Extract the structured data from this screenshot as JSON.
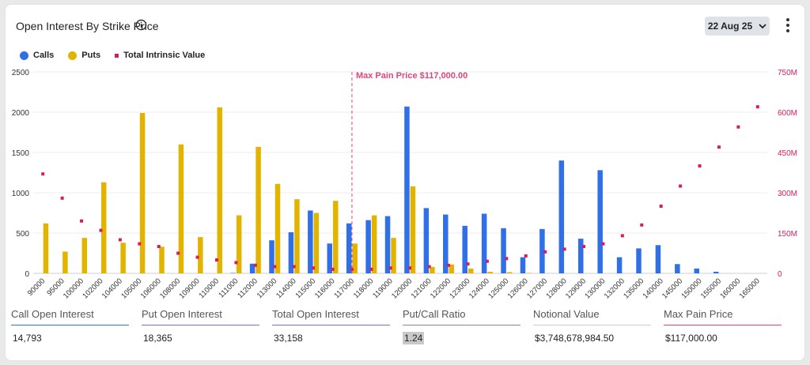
{
  "header": {
    "title": "Open Interest By Strike Price",
    "date_label": "22 Aug 25"
  },
  "legend": {
    "calls": "Calls",
    "puts": "Puts",
    "intrinsic": "Total Intrinsic Value"
  },
  "colors": {
    "calls": "#2f6fe8",
    "puts": "#e2b400",
    "intrinsic": "#d81b60",
    "maxpain": "#e0457b"
  },
  "chart_data": {
    "type": "bar",
    "categories": [
      "90000",
      "95000",
      "100000",
      "102000",
      "104000",
      "105000",
      "106000",
      "108000",
      "109000",
      "110000",
      "111000",
      "112000",
      "113000",
      "114000",
      "115000",
      "116000",
      "117000",
      "118000",
      "119000",
      "120000",
      "121000",
      "122000",
      "123000",
      "124000",
      "125000",
      "126000",
      "127000",
      "128000",
      "129000",
      "130000",
      "132000",
      "135000",
      "140000",
      "145000",
      "150000",
      "155000",
      "160000",
      "165000"
    ],
    "series": [
      {
        "name": "Calls",
        "axis": "left",
        "kind": "bar",
        "values": [
          0,
          0,
          0,
          0,
          0,
          0,
          0,
          0,
          0,
          0,
          5,
          120,
          410,
          510,
          780,
          370,
          620,
          660,
          710,
          2070,
          810,
          730,
          590,
          740,
          560,
          200,
          550,
          1400,
          430,
          1280,
          200,
          310,
          350,
          115,
          60,
          20,
          0,
          0
        ]
      },
      {
        "name": "Puts",
        "axis": "left",
        "kind": "bar",
        "values": [
          620,
          270,
          440,
          1130,
          380,
          1990,
          330,
          1600,
          450,
          2060,
          720,
          1570,
          1110,
          920,
          750,
          900,
          370,
          720,
          440,
          1080,
          80,
          110,
          60,
          20,
          15,
          5,
          0,
          0,
          0,
          0,
          0,
          0,
          0,
          0,
          0,
          0,
          0,
          0
        ]
      },
      {
        "name": "Total Intrinsic Value",
        "axis": "right",
        "kind": "point",
        "unit": "M",
        "values": [
          370,
          280,
          195,
          160,
          125,
          110,
          100,
          75,
          60,
          50,
          40,
          30,
          25,
          25,
          20,
          15,
          15,
          15,
          20,
          20,
          25,
          30,
          35,
          45,
          55,
          65,
          80,
          90,
          100,
          110,
          140,
          180,
          250,
          325,
          400,
          470,
          545,
          620
        ]
      }
    ],
    "y_left": {
      "min": 0,
      "max": 2500,
      "ticks": [
        "0",
        "500",
        "1000",
        "1500",
        "2000",
        "2500"
      ]
    },
    "y_right": {
      "min": 0,
      "max": 750,
      "ticks": [
        "0",
        "150M",
        "300M",
        "450M",
        "600M",
        "750M"
      ]
    },
    "max_pain": {
      "category": "117000",
      "label": "Max Pain Price $117,000.00"
    },
    "grid": true,
    "legend_position": "top-left"
  },
  "stats": [
    {
      "label": "Call Open Interest",
      "value": "14,793",
      "color": "#2f6fe8"
    },
    {
      "label": "Put Open Interest",
      "value": "18,365",
      "color": "#7c6cd8"
    },
    {
      "label": "Total Open Interest",
      "value": "33,158",
      "color": "#7c6cd8"
    },
    {
      "label": "Put/Call Ratio",
      "value": "1.24",
      "color": "#888888"
    },
    {
      "label": "Notional Value",
      "value": "$3,748,678,984.50",
      "color": "#cccccc"
    },
    {
      "label": "Max Pain Price",
      "value": "$117,000.00",
      "color": "#e0457b"
    }
  ]
}
